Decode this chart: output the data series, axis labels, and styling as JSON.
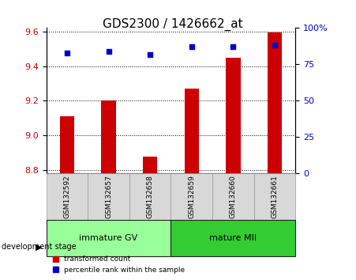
{
  "title": "GDS2300 / 1426662_at",
  "samples": [
    "GSM132592",
    "GSM132657",
    "GSM132658",
    "GSM132659",
    "GSM132660",
    "GSM132661"
  ],
  "bar_values": [
    9.11,
    9.2,
    8.88,
    9.27,
    9.45,
    9.595
  ],
  "bar_base": 8.78,
  "percentile_values": [
    83,
    84,
    82,
    87,
    87,
    88
  ],
  "ylim_left": [
    8.78,
    9.62
  ],
  "yticks_left": [
    8.8,
    9.0,
    9.2,
    9.4,
    9.6
  ],
  "yticks_right": [
    0,
    25,
    50,
    75,
    100
  ],
  "bar_color": "#cc0000",
  "dot_color": "#0000cc",
  "groups": [
    {
      "label": "immature GV",
      "indices": [
        0,
        1,
        2
      ],
      "color": "#99ff99"
    },
    {
      "label": "mature MII",
      "indices": [
        3,
        4,
        5
      ],
      "color": "#33cc33"
    }
  ],
  "group_label_prefix": "development stage",
  "legend_bar_label": "transformed count",
  "legend_dot_label": "percentile rank within the sample",
  "bg_color": "#d8d8d8",
  "title_fontsize": 11,
  "tick_fontsize": 8
}
